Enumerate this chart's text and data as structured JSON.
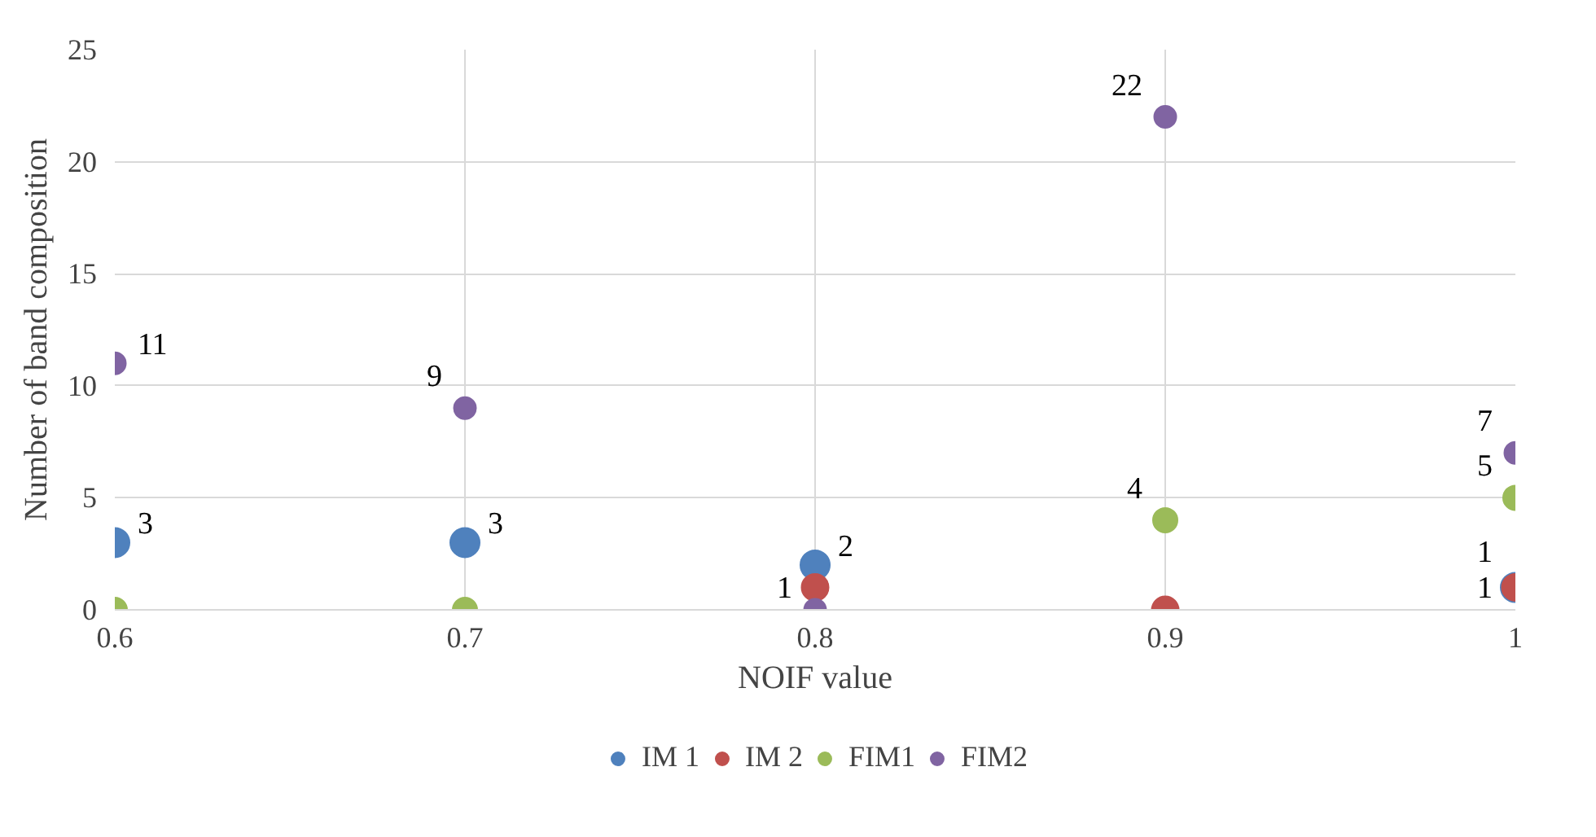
{
  "chart_data": {
    "type": "scatter",
    "xlabel": "NOIF value",
    "ylabel": "Number of band composition",
    "x": [
      0.6,
      0.7,
      0.8,
      0.9,
      1
    ],
    "xlim": [
      0.6,
      1
    ],
    "xticks": [
      0.6,
      0.7,
      0.8,
      0.9,
      1
    ],
    "ylim": [
      0,
      25
    ],
    "yticks": [
      0,
      5,
      10,
      15,
      20,
      25
    ],
    "grid": true,
    "legend": "bottom",
    "marker": "circle",
    "series": [
      {
        "name": "IM 1",
        "color": "#4f81bd",
        "values": [
          3,
          3,
          2,
          null,
          1
        ],
        "value_labels": [
          "3",
          "3",
          "2",
          null,
          "1"
        ]
      },
      {
        "name": "IM 2",
        "color": "#c0504d",
        "values": [
          null,
          null,
          1,
          0,
          1
        ],
        "value_labels": [
          null,
          null,
          "1",
          null,
          "1"
        ]
      },
      {
        "name": "FIM1",
        "color": "#9bbb59",
        "values": [
          0,
          0,
          null,
          4,
          5
        ],
        "value_labels": [
          null,
          null,
          null,
          "4",
          "5"
        ]
      },
      {
        "name": "FIM2",
        "color": "#8064a2",
        "values": [
          11,
          9,
          0,
          22,
          7
        ],
        "value_labels": [
          "11",
          "9",
          null,
          "22",
          "7"
        ]
      }
    ]
  }
}
